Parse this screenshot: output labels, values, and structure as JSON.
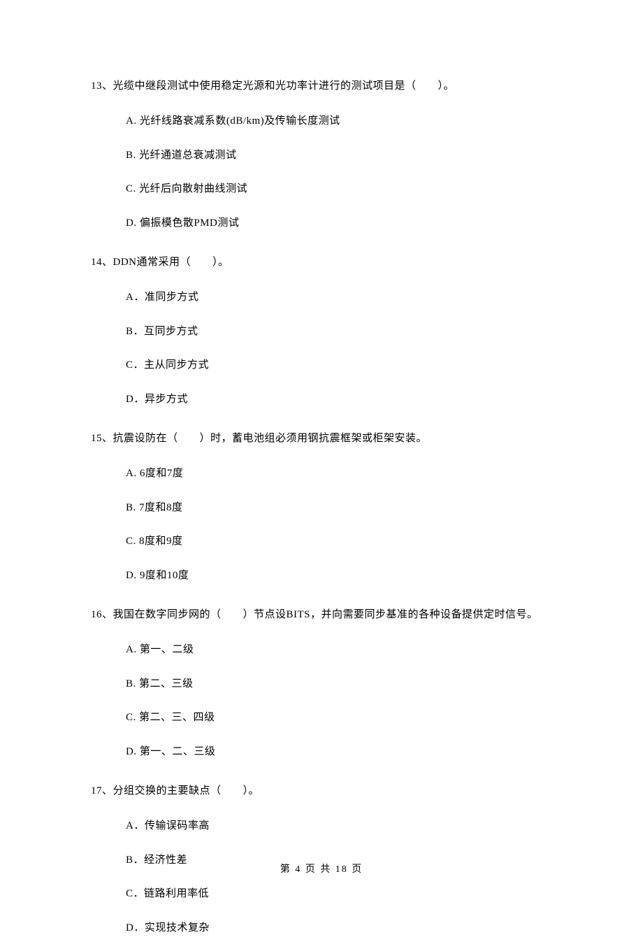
{
  "questions": [
    {
      "number": "13",
      "text": "13、光缆中继段测试中使用稳定光源和光功率计进行的测试项目是（　　）。",
      "options": [
        "A.  光纤线路衰减系数(dB/km)及传输长度测试",
        "B.  光纤通道总衰减测试",
        "C.  光纤后向散射曲线测试",
        "D.  偏振模色散PMD测试"
      ]
    },
    {
      "number": "14",
      "text": "14、DDN通常采用（　　）。",
      "options": [
        "A．准同步方式",
        "B．互同步方式",
        "C．主从同步方式",
        "D．异步方式"
      ]
    },
    {
      "number": "15",
      "text": "15、抗震设防在（　　）时，蓄电池组必须用钢抗震框架或柜架安装。",
      "options": [
        "A. 6度和7度",
        "B. 7度和8度",
        "C. 8度和9度",
        "D. 9度和10度"
      ]
    },
    {
      "number": "16",
      "text": "16、我国在数字同步网的（　　）节点设BITS，并向需要同步基准的各种设备提供定时信号。",
      "options": [
        "A.  第一、二级",
        "B.  第二、三级",
        "C.  第二、三、四级",
        "D.  第一、二、三级"
      ]
    },
    {
      "number": "17",
      "text": "17、分组交换的主要缺点（　　）。",
      "options": [
        "A．传输误码率高",
        "B．经济性差",
        "C．链路利用率低",
        "D．实现技术复杂"
      ]
    }
  ],
  "footer": "第 4 页 共 18 页"
}
